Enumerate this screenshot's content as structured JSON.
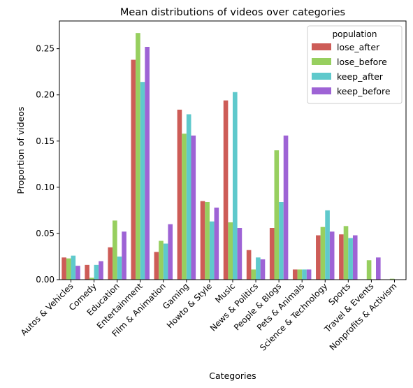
{
  "chart_data": {
    "type": "bar",
    "title": "Mean distributions of videos over categories",
    "xlabel": "Categories",
    "ylabel": "Proportion of videos",
    "ylim": [
      0,
      0.28
    ],
    "yticks": [
      0.0,
      0.05,
      0.1,
      0.15,
      0.2,
      0.25
    ],
    "ytick_labels": [
      "0.00",
      "0.05",
      "0.10",
      "0.15",
      "0.20",
      "0.25"
    ],
    "grid": false,
    "legend": {
      "title": "population",
      "placement": "top-right"
    },
    "categories": [
      "Autos & Vehicles",
      "Comedy",
      "Education",
      "Entertainment",
      "Film & Animation",
      "Gaming",
      "Howto & Style",
      "Music",
      "News & Politics",
      "People & Blogs",
      "Pets & Animals",
      "Science & Technology",
      "Sports",
      "Travel & Events",
      "Nonprofits & Activism"
    ],
    "series": [
      {
        "name": "lose_after",
        "color": "#cd5c57",
        "values": [
          0.024,
          0.016,
          0.035,
          0.238,
          0.03,
          0.184,
          0.085,
          0.194,
          0.032,
          0.056,
          0.011,
          0.048,
          0.049,
          0.0,
          0.0
        ]
      },
      {
        "name": "lose_before",
        "color": "#97cf5f",
        "values": [
          0.023,
          0.002,
          0.064,
          0.267,
          0.042,
          0.158,
          0.084,
          0.062,
          0.011,
          0.14,
          0.011,
          0.057,
          0.058,
          0.021,
          0.001
        ]
      },
      {
        "name": "keep_after",
        "color": "#5fc9cc",
        "values": [
          0.026,
          0.016,
          0.025,
          0.214,
          0.039,
          0.179,
          0.063,
          0.203,
          0.024,
          0.084,
          0.011,
          0.075,
          0.045,
          0.0,
          0.0
        ]
      },
      {
        "name": "keep_before",
        "color": "#9e63d5",
        "values": [
          0.015,
          0.02,
          0.052,
          0.252,
          0.06,
          0.156,
          0.078,
          0.056,
          0.022,
          0.156,
          0.011,
          0.052,
          0.048,
          0.024,
          0.0
        ]
      }
    ]
  }
}
